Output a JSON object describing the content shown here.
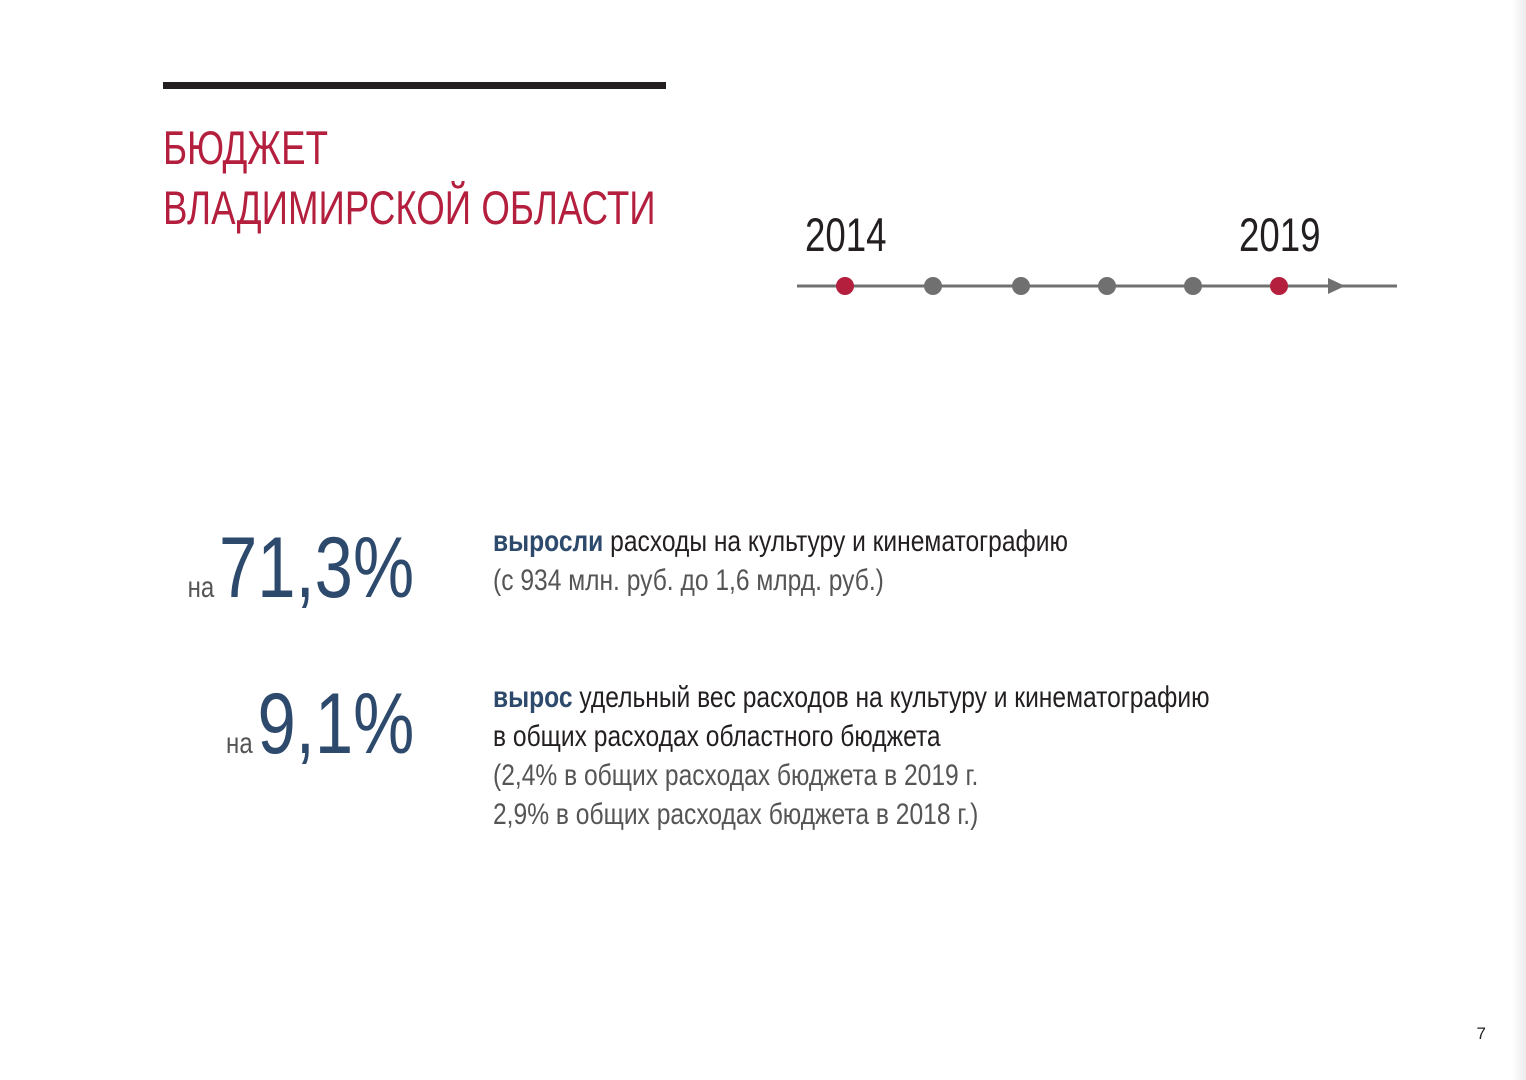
{
  "title": {
    "line1": "БЮДЖЕТ",
    "line2": "ВЛАДИМИРСКОЙ ОБЛАСТИ"
  },
  "timeline": {
    "start_year": "2014",
    "end_year": "2019",
    "points": 6,
    "highlighted_points": [
      1,
      6
    ]
  },
  "colors": {
    "accent_red": "#b41f3e",
    "accent_blue": "#2d4a6d",
    "rule_dark": "#231f20",
    "timeline_gray": "#707070"
  },
  "stats": [
    {
      "prefix": "на",
      "value": "71,3%",
      "keyword": "выросли",
      "text": " расходы на культуру и кинематографию",
      "notes": [
        "(с 934 млн. руб. до 1,6 млрд. руб.)"
      ]
    },
    {
      "prefix": "на",
      "value": "9,1%",
      "keyword": "вырос",
      "text": " удельный вес расходов на культуру и кинематографию",
      "text2": "в общих расходах областного бюджета",
      "notes": [
        "(2,4% в общих расходах бюджета в 2019 г.",
        "2,9% в общих расходах бюджета в 2018 г.)"
      ]
    }
  ],
  "page_number": "7"
}
